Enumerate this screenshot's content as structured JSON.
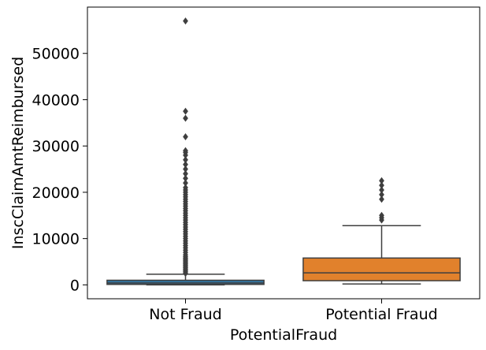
{
  "chart_data": {
    "type": "box",
    "title": "",
    "xlabel": "PotentialFraud",
    "ylabel": "InscClaimAmtReimbursed",
    "ylim": [
      -3000,
      60000
    ],
    "yticks": [
      0,
      10000,
      20000,
      30000,
      40000,
      50000
    ],
    "ytick_labels": [
      "0",
      "10000",
      "20000",
      "30000",
      "40000",
      "50000"
    ],
    "grid": false,
    "legend": "none",
    "categories": [
      "Not Fraud",
      "Potential Fraud"
    ],
    "colors": [
      "#3274a1",
      "#e1812c"
    ],
    "boxes": [
      {
        "category": "Not Fraud",
        "whisker_low": 0,
        "q1": 100,
        "median": 400,
        "q3": 1000,
        "whisker_high": 2300,
        "outliers": [
          2500,
          2800,
          3100,
          3400,
          3700,
          4000,
          4300,
          4600,
          4900,
          5200,
          5500,
          5800,
          6100,
          6500,
          7000,
          7500,
          8000,
          8500,
          9000,
          9500,
          10000,
          10500,
          11000,
          11500,
          12000,
          12500,
          13000,
          13500,
          14000,
          14500,
          15000,
          15500,
          16000,
          16500,
          17000,
          17500,
          18000,
          18500,
          19000,
          19500,
          20000,
          20500,
          21000,
          22000,
          23000,
          24000,
          25000,
          26000,
          27000,
          28000,
          28600,
          29000,
          32000,
          36000,
          37500,
          57000
        ]
      },
      {
        "category": "Potential Fraud",
        "whisker_low": 200,
        "q1": 900,
        "median": 2600,
        "q3": 5800,
        "whisker_high": 12800,
        "outliers": [
          14000,
          14500,
          15000,
          18500,
          19500,
          20500,
          21500,
          22500
        ]
      }
    ]
  }
}
